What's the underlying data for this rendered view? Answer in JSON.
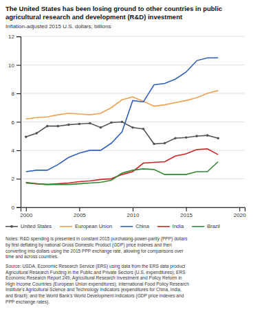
{
  "chart_data": {
    "type": "line",
    "title": "The United States has been losing ground to other countries in public\nagricultural research and development (R&D) investment",
    "subtitle": "Inflation-adjusted 2015 U.S. dollars, billions",
    "x": [
      2000,
      2001,
      2002,
      2003,
      2004,
      2005,
      2006,
      2007,
      2008,
      2009,
      2010,
      2011,
      2012,
      2013,
      2014,
      2015,
      2016,
      2017,
      2018
    ],
    "series": [
      {
        "name": "United States",
        "color": "#555555",
        "marker": "circle",
        "values": [
          4.95,
          5.2,
          5.7,
          5.7,
          5.8,
          5.85,
          5.9,
          5.6,
          5.95,
          6.0,
          5.6,
          5.5,
          4.45,
          4.5,
          4.85,
          4.9,
          5.0,
          5.05,
          4.85
        ]
      },
      {
        "name": "European Union",
        "color": "#f0a050",
        "values": [
          6.2,
          6.3,
          6.35,
          6.5,
          6.6,
          6.55,
          6.5,
          6.6,
          7.0,
          7.55,
          7.75,
          7.45,
          7.1,
          7.2,
          7.35,
          7.5,
          7.7,
          8.0,
          8.2
        ]
      },
      {
        "name": "China",
        "color": "#3060c0",
        "values": [
          2.5,
          2.6,
          2.6,
          3.0,
          3.5,
          3.8,
          4.0,
          4.0,
          4.5,
          5.3,
          7.5,
          7.4,
          8.6,
          8.7,
          9.0,
          9.5,
          10.3,
          10.5,
          10.5
        ]
      },
      {
        "name": "India",
        "color": "#cc2222",
        "values": [
          1.7,
          1.65,
          1.6,
          1.65,
          1.7,
          1.8,
          1.85,
          1.95,
          2.0,
          2.3,
          2.5,
          3.1,
          3.15,
          3.2,
          3.6,
          3.75,
          4.05,
          4.1,
          3.7
        ]
      },
      {
        "name": "Brazil",
        "color": "#338833",
        "values": [
          1.75,
          1.65,
          1.6,
          1.6,
          1.6,
          1.65,
          1.7,
          1.75,
          1.9,
          2.4,
          2.6,
          2.7,
          2.65,
          2.3,
          2.3,
          2.3,
          2.5,
          2.5,
          3.2
        ]
      }
    ],
    "xlim": [
      1999.5,
      2020.5
    ],
    "xticks": [
      2000,
      2005,
      2010,
      2015,
      2020
    ],
    "ylim": [
      0,
      12
    ],
    "yticks": [
      0,
      2,
      4,
      6,
      8,
      10,
      12
    ],
    "grid": true,
    "legend": "bottom",
    "annotations": [
      "Notes: R&D spending is presented in constant 2015 purchasing-power-parity (PPP) dollars\nby first deflating by national Gross Domestic Product (GDP) price indexes and then\nconverting into dollars using the 2015 PPP exchange rate, allowing for comparisons over\ntime and across countries.",
      "Source: USDA, Economic Research Service (ERS) using data from the ERS data product\nAgricultural Research Funding in the Public and Private Sectors (U.S. expenditures); ERS\nEconomic Research Report 249, Agricultural Research Investment and Policy Reform in\nHigh Income Countries (European Union expenditures); International Food Policy Research\nInstitute’s Agricultural Science and Technology Indicators (expenditures for China, India,\nand Brazil); and the World Bank’s World Development Indicators (GDP price indexes and\nPPP exchange rates)."
    ]
  }
}
